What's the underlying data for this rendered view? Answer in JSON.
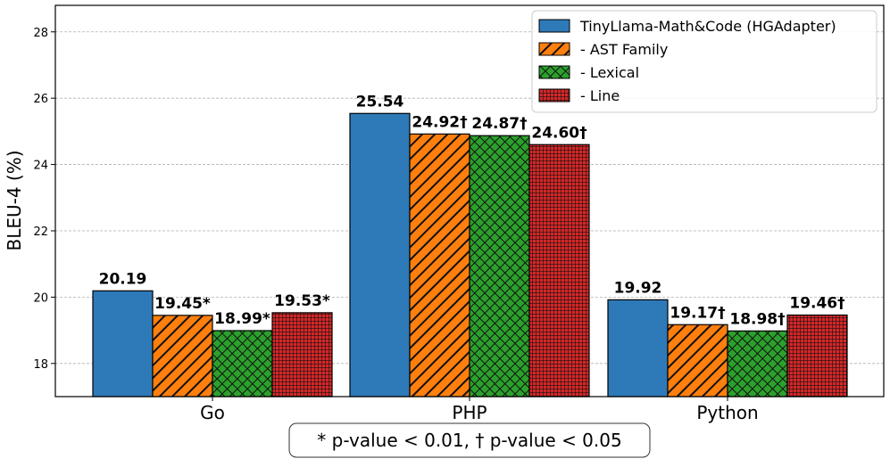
{
  "chart_data": {
    "type": "bar",
    "ylabel": "BLEU-4 (%)",
    "xlabel": "",
    "ylim": [
      17.0,
      28.8
    ],
    "yticks": [
      18,
      20,
      22,
      24,
      26,
      28
    ],
    "grid": true,
    "categories": [
      "Go",
      "PHP",
      "Python"
    ],
    "series": [
      {
        "name": "TinyLlama-Math&Code (HGAdapter)",
        "values": [
          20.19,
          25.54,
          19.92
        ],
        "labels": [
          "20.19",
          "25.54",
          "19.92"
        ],
        "color": "#2e7ab8",
        "pattern": "solid"
      },
      {
        "name": "- AST Family",
        "values": [
          19.45,
          24.92,
          19.17
        ],
        "labels": [
          "19.45*",
          "24.92†",
          "19.17†"
        ],
        "color": "#ff7f0e",
        "pattern": "diagonal"
      },
      {
        "name": "- Lexical",
        "values": [
          18.99,
          24.87,
          18.98
        ],
        "labels": [
          "18.99*",
          "24.87†",
          "18.98†"
        ],
        "color": "#2ca02c",
        "pattern": "crosshatch"
      },
      {
        "name": "- Line",
        "values": [
          19.53,
          24.6,
          19.46
        ],
        "labels": [
          "19.53*",
          "24.60†",
          "19.46†"
        ],
        "color": "#d62728",
        "pattern": "grid"
      }
    ],
    "legend_position": "top-right",
    "annotation": "* p-value < 0.01, † p-value < 0.05"
  }
}
